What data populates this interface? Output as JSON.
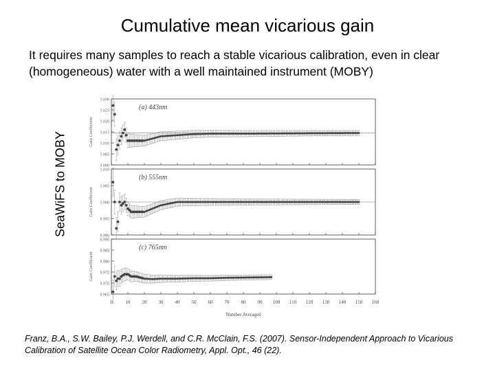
{
  "page": {
    "title": "Cumulative mean vicarious gain",
    "subtitle": "It requires many samples to reach a stable vicarious calibration, even in clear (homogeneous) water with a well maintained instrument (MOBY)",
    "side_label": "SeaWiFS to MOBY",
    "citation": "Franz, B.A., S.W. Bailey, P.J. Werdell, and C.R. McClain, F.S. (2007). Sensor-Independent Approach to Vicarious Calibration of Satellite Ocean Color Radiometry, Appl. Opt., 46 (22)."
  },
  "colors": {
    "marker": "#444444",
    "errorbar": "#999999",
    "axis": "#333333",
    "refline": "#777777"
  },
  "chart_data": [
    {
      "type": "scatter",
      "panel_label": "(a) 443nm",
      "xlabel": "Number Averaged",
      "ylabel": "Gain Coefficient",
      "xlim": [
        0,
        160
      ],
      "ylim": [
        1.0,
        1.03
      ],
      "yticks": [
        "1.000",
        "1.005",
        "1.010",
        "1.015",
        "1.020",
        "1.025",
        "1.030"
      ],
      "reference_line": 1.0145,
      "last_x": 150,
      "x": [
        1,
        2,
        3,
        4,
        5,
        6,
        8,
        10,
        12,
        15,
        20,
        25,
        30,
        40,
        50,
        60,
        80,
        100,
        120,
        150
      ],
      "y": [
        1.027,
        1.023,
        1.007,
        1.009,
        1.011,
        1.013,
        1.016,
        1.011,
        1.011,
        1.011,
        1.011,
        1.012,
        1.013,
        1.0135,
        1.014,
        1.0142,
        1.0142,
        1.0143,
        1.0144,
        1.0145
      ]
    },
    {
      "type": "scatter",
      "panel_label": "(b) 555nm",
      "xlabel": "Number Averaged",
      "ylabel": "Gain Coefficient",
      "xlim": [
        0,
        160
      ],
      "ylim": [
        0.99,
        1.01
      ],
      "yticks": [
        "0.990",
        "0.995",
        "1.000",
        "1.005",
        "1.010"
      ],
      "reference_line": 1.0,
      "last_x": 150,
      "x": [
        1,
        2,
        3,
        4,
        5,
        6,
        8,
        10,
        12,
        15,
        20,
        25,
        30,
        40,
        50,
        60,
        80,
        100,
        120,
        150
      ],
      "y": [
        1.006,
        1.0,
        0.992,
        0.994,
        1.0,
        0.999,
        1.0,
        0.998,
        0.997,
        0.997,
        0.997,
        0.998,
        0.999,
        1.0,
        1.0,
        1.0,
        1.0,
        1.0,
        1.0,
        1.0
      ]
    },
    {
      "type": "scatter",
      "panel_label": "(c) 765nm",
      "xlabel": "Number Averaged",
      "ylabel": "Gain Coefficient",
      "xlim": [
        0,
        160
      ],
      "ylim": [
        0.965,
        0.99
      ],
      "yticks": [
        "0.965",
        "0.970",
        "0.975",
        "0.980",
        "0.985",
        "0.990"
      ],
      "reference_line": null,
      "last_x": 97,
      "x": [
        1,
        2,
        3,
        4,
        5,
        6,
        8,
        10,
        12,
        15,
        20,
        25,
        30,
        40,
        50,
        60,
        70,
        80,
        90,
        97
      ],
      "y": [
        0.966,
        0.973,
        0.971,
        0.972,
        0.972,
        0.973,
        0.974,
        0.974,
        0.973,
        0.973,
        0.972,
        0.9718,
        0.972,
        0.972,
        0.9722,
        0.9722,
        0.9724,
        0.9725,
        0.9726,
        0.9727
      ]
    }
  ],
  "x_axis": {
    "label": "Number Averaged",
    "ticks": [
      "0",
      "10",
      "20",
      "30",
      "40",
      "50",
      "60",
      "70",
      "80",
      "90",
      "100",
      "110",
      "120",
      "130",
      "140",
      "150",
      "160"
    ]
  }
}
